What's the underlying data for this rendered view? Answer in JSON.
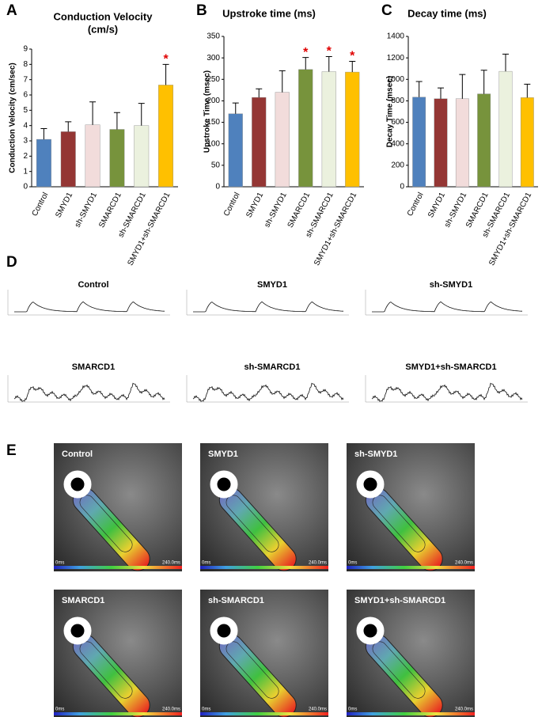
{
  "chart_data": [
    {
      "type": "bar",
      "label": "A",
      "title": [
        "Conduction Velocity",
        "(cm/s)"
      ],
      "y_label": "Conduction Velocity (cm/sec)",
      "categories": [
        "Control",
        "SMYD1",
        "sh-SMYD1",
        "SMARCD1",
        "sh-SMARCD1",
        "SMYD1+sh-SMARCD1"
      ],
      "values": [
        3.1,
        3.6,
        4.05,
        3.75,
        4.0,
        6.65
      ],
      "errors": [
        0.7,
        0.65,
        1.5,
        1.1,
        1.45,
        1.35
      ],
      "colors": [
        "#4f81bd",
        "#943634",
        "#f2dcdb",
        "#77933c",
        "#ebf1de",
        "#ffc000"
      ],
      "significant": [
        false,
        false,
        false,
        false,
        false,
        true
      ],
      "significance_marker": "*",
      "ylim": [
        0,
        9
      ],
      "yticks": [
        0,
        1,
        2,
        3,
        4,
        5,
        6,
        7,
        8,
        9
      ]
    },
    {
      "type": "bar",
      "label": "B",
      "title": "Upstroke time (ms)",
      "y_label": "Upstroke Time (msec)",
      "categories": [
        "Control",
        "SMYD1",
        "sh-SMYD1",
        "SMARCD1",
        "sh-SMARCD1",
        "SMYD1+sh-SMARCD1"
      ],
      "values": [
        170,
        208,
        220,
        273,
        268,
        267
      ],
      "errors": [
        25,
        20,
        50,
        28,
        35,
        25
      ],
      "colors": [
        "#4f81bd",
        "#943634",
        "#f2dcdb",
        "#77933c",
        "#ebf1de",
        "#ffc000"
      ],
      "significant": [
        false,
        false,
        false,
        true,
        true,
        true
      ],
      "significance_marker": "*",
      "ylim": [
        0,
        350
      ],
      "yticks": [
        0,
        50,
        100,
        150,
        200,
        250,
        300,
        350
      ]
    },
    {
      "type": "bar",
      "label": "C",
      "title": "Decay time (ms)",
      "y_label": "Decay Time (msec)",
      "categories": [
        "Control",
        "SMYD1",
        "sh-SMYD1",
        "SMARCD1",
        "sh-SMARCD1",
        "SMYD1+sh-SMARCD1"
      ],
      "values": [
        835,
        820,
        820,
        865,
        1075,
        830
      ],
      "errors": [
        145,
        100,
        225,
        220,
        160,
        125
      ],
      "colors": [
        "#4f81bd",
        "#943634",
        "#f2dcdb",
        "#77933c",
        "#ebf1de",
        "#ffc000"
      ],
      "significant": [
        false,
        false,
        false,
        false,
        false,
        false
      ],
      "significance_marker": "*",
      "ylim": [
        0,
        1400
      ],
      "yticks": [
        0,
        200,
        400,
        600,
        800,
        1000,
        1200,
        1400
      ]
    }
  ],
  "traces": {
    "label": "D",
    "titles": [
      "Control",
      "SMYD1",
      "sh-SMYD1",
      "SMARCD1",
      "sh-SMARCD1",
      "SMYD1+sh-SMARCD1"
    ]
  },
  "maps": {
    "label": "E",
    "titles": [
      "Control",
      "SMYD1",
      "sh-SMYD1",
      "SMARCD1",
      "sh-SMARCD1",
      "SMYD1+sh-SMARCD1"
    ],
    "scale_start": "0ms",
    "scale_end": "240.0ms"
  }
}
